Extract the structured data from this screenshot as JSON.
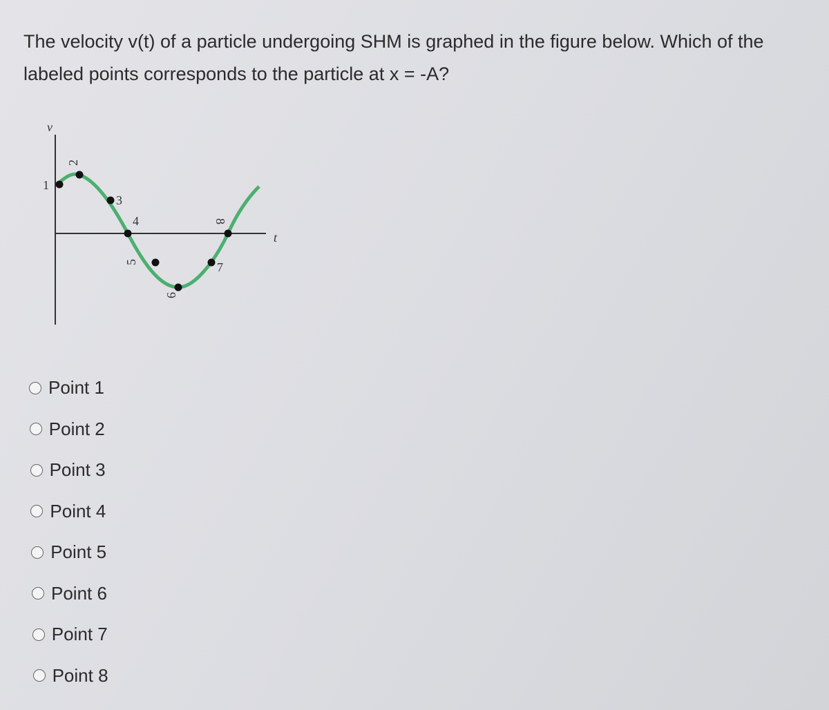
{
  "question": {
    "line1": "The velocity v(t) of a particle undergoing SHM is graphed in the figure below. Which of the",
    "line2": "labeled points corresponds to the particle at x = -A?"
  },
  "figure": {
    "y_axis_label": "v",
    "x_axis_label": "t",
    "point_labels": [
      "1",
      "2",
      "3",
      "4",
      "5",
      "6",
      "7",
      "8"
    ]
  },
  "options": [
    "Point 1",
    "Point 2",
    "Point 3",
    "Point 4",
    "Point 5",
    "Point 6",
    "Point 7",
    "Point 8"
  ]
}
